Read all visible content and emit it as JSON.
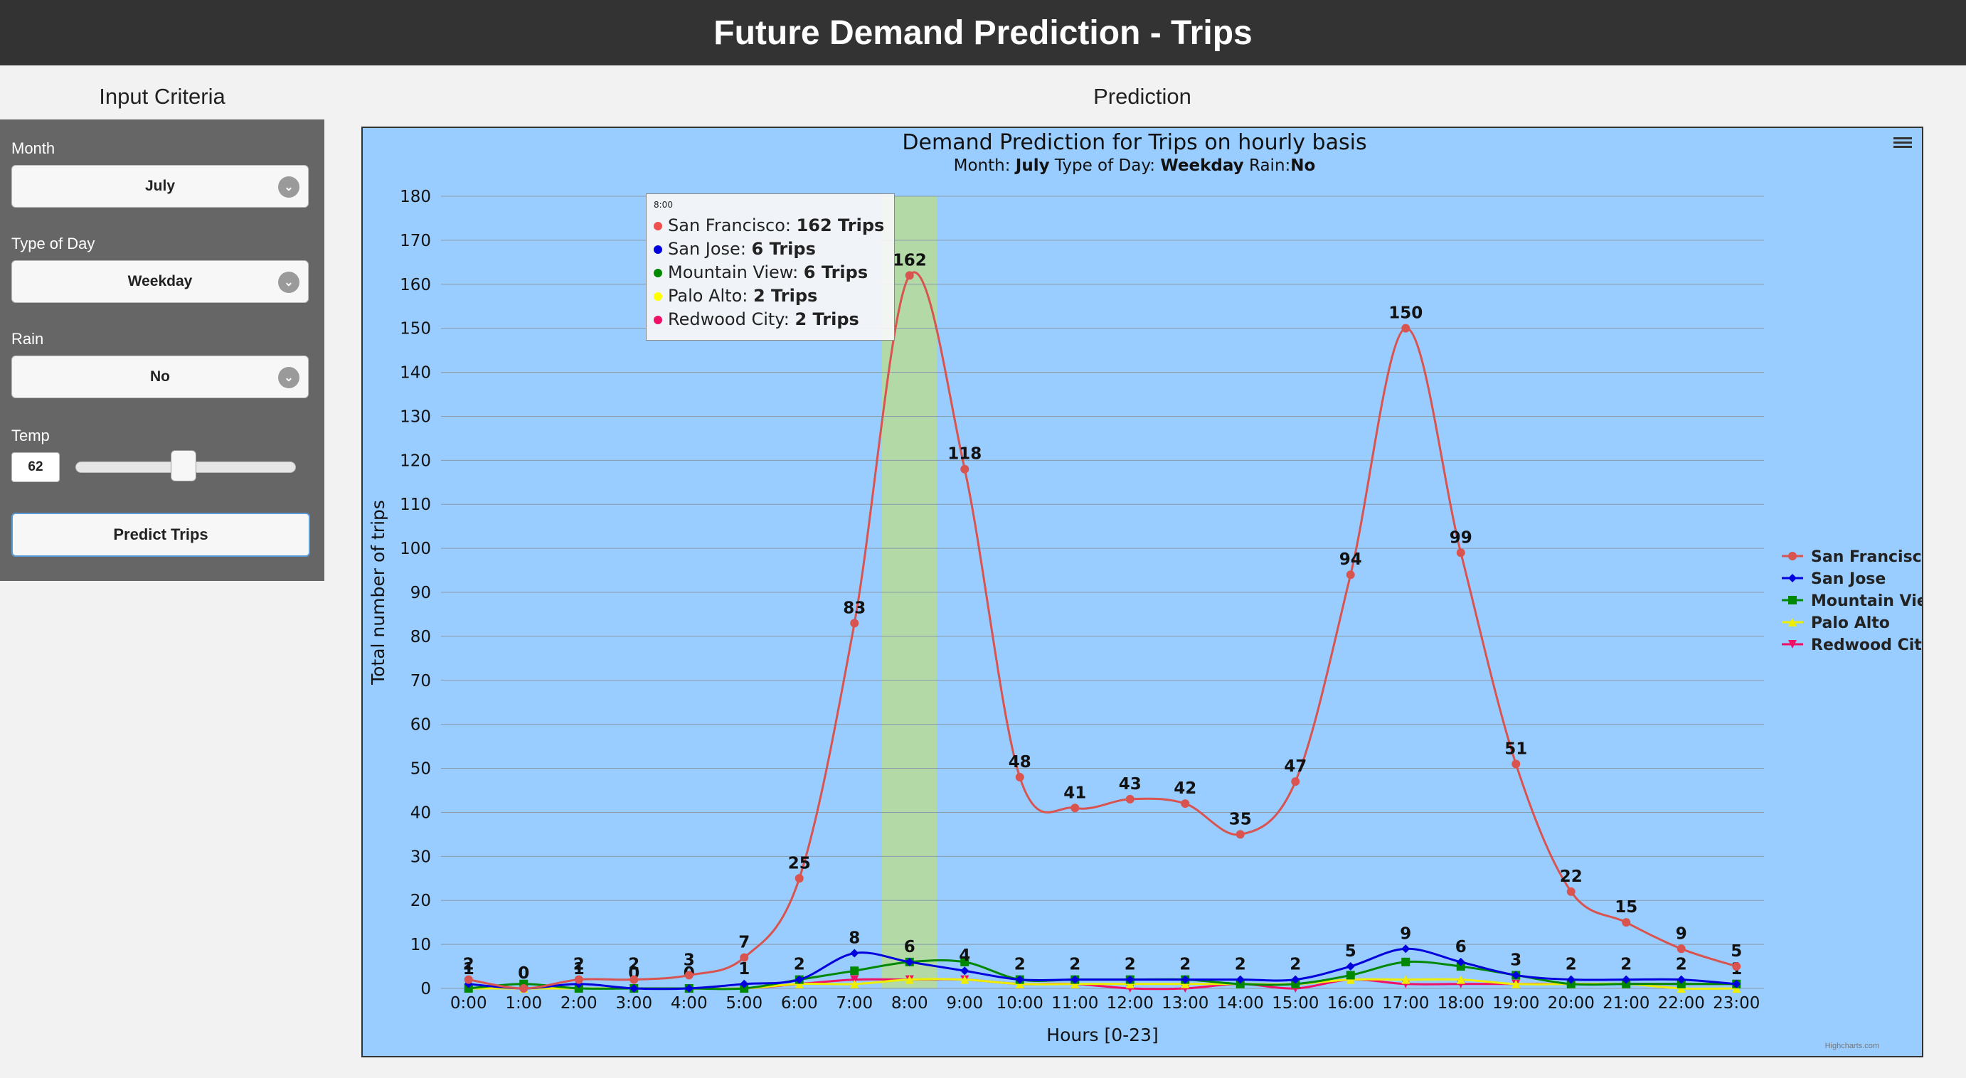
{
  "header": {
    "title": "Future Demand Prediction - Trips"
  },
  "left": {
    "title": "Input Criteria",
    "month": {
      "label": "Month",
      "value": "July"
    },
    "day_type": {
      "label": "Type of Day",
      "value": "Weekday"
    },
    "rain": {
      "label": "Rain",
      "value": "No"
    },
    "temp": {
      "label": "Temp",
      "value": "62",
      "slider_level": 0.49
    },
    "predict_button": "Predict Trips"
  },
  "right": {
    "title": "Prediction"
  },
  "tooltip": {
    "header": "8:00",
    "rows": [
      {
        "label": "San Francisco: ",
        "value": "162 Trips",
        "color": "#f05050"
      },
      {
        "label": "San Jose: ",
        "value": "6 Trips",
        "color": "#0000dd"
      },
      {
        "label": "Mountain View: ",
        "value": "6 Trips",
        "color": "#008800"
      },
      {
        "label": "Palo Alto: ",
        "value": "2 Trips",
        "color": "#ffff00"
      },
      {
        "label": "Redwood City: ",
        "value": "2 Trips",
        "color": "#ee1166"
      }
    ]
  },
  "credit": "Highcharts.com",
  "chart_data": {
    "type": "line",
    "title": "Demand Prediction for Trips on hourly basis",
    "subtitle_parts": [
      "Month: ",
      "July",
      " Type of Day: ",
      "Weekday",
      " Rain:",
      "No"
    ],
    "xlabel": "Hours [0-23]",
    "ylabel": "Total number of trips",
    "ylim": [
      0,
      180
    ],
    "yticks": [
      0,
      10,
      20,
      30,
      40,
      50,
      60,
      70,
      80,
      90,
      100,
      110,
      120,
      130,
      140,
      150,
      160,
      170,
      180
    ],
    "grid": true,
    "legend_position": "right",
    "highlight_category": "8:00",
    "categories": [
      "0:00",
      "1:00",
      "2:00",
      "3:00",
      "4:00",
      "5:00",
      "6:00",
      "7:00",
      "8:00",
      "9:00",
      "10:00",
      "11:00",
      "12:00",
      "13:00",
      "14:00",
      "15:00",
      "16:00",
      "17:00",
      "18:00",
      "19:00",
      "20:00",
      "21:00",
      "22:00",
      "23:00"
    ],
    "series": [
      {
        "name": "San Francisco",
        "color": "#d9534f",
        "marker": "circle",
        "labels": true,
        "values": [
          2,
          0,
          2,
          2,
          3,
          7,
          25,
          83,
          162,
          118,
          48,
          41,
          43,
          42,
          35,
          47,
          94,
          150,
          99,
          51,
          22,
          15,
          9,
          5
        ]
      },
      {
        "name": "San Jose",
        "color": "#0000dd",
        "marker": "diamond",
        "labels": true,
        "values": [
          1,
          0,
          1,
          0,
          0,
          1,
          2,
          8,
          6,
          4,
          2,
          2,
          2,
          2,
          2,
          2,
          5,
          9,
          6,
          3,
          2,
          2,
          2,
          1
        ]
      },
      {
        "name": "Mountain View",
        "color": "#008800",
        "marker": "square",
        "labels": false,
        "values": [
          0,
          1,
          0,
          0,
          0,
          0,
          2,
          4,
          6,
          6,
          2,
          2,
          2,
          2,
          1,
          1,
          3,
          6,
          5,
          3,
          1,
          1,
          1,
          1
        ]
      },
      {
        "name": "Palo Alto",
        "color": "#eeee00",
        "marker": "triangle",
        "labels": false,
        "values": [
          0,
          0,
          0,
          0,
          0,
          0,
          1,
          1,
          2,
          2,
          1,
          1,
          1,
          1,
          1,
          1,
          2,
          2,
          2,
          1,
          1,
          1,
          0,
          0
        ]
      },
      {
        "name": "Redwood City",
        "color": "#ee1166",
        "marker": "triangle-down",
        "labels": false,
        "values": [
          0,
          0,
          0,
          0,
          0,
          0,
          1,
          2,
          2,
          2,
          1,
          1,
          0,
          0,
          1,
          0,
          2,
          1,
          1,
          1,
          1,
          1,
          1,
          1
        ]
      }
    ]
  }
}
